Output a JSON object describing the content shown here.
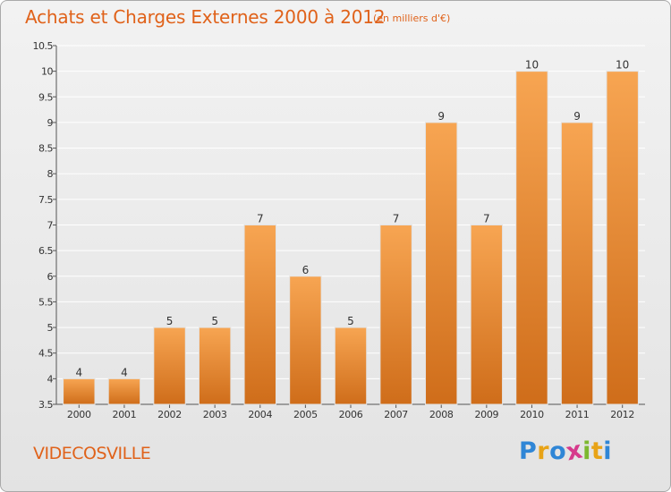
{
  "title": "Achats et Charges Externes 2000 à 2012",
  "unit_label": "(en milliers d'€)",
  "commune_name": "VIDECOSVILLE",
  "brand": {
    "letters": [
      "P",
      "r",
      "o",
      "x",
      "i",
      "t",
      "i"
    ],
    "colors": [
      "#2f86d6",
      "#e8a317",
      "#2f86d6",
      "#d63a8c",
      "#7cb82f",
      "#e8a317",
      "#2f86d6"
    ]
  },
  "colors": {
    "bar_top": "#f7a552",
    "bar_bottom": "#cf6d1a",
    "accent": "#e0621a",
    "grid": "#ffffff"
  },
  "chart_data": {
    "type": "bar",
    "title": "Achats et Charges Externes 2000 à 2012",
    "subtitle": "(en milliers d'€)",
    "categories": [
      "2000",
      "2001",
      "2002",
      "2003",
      "2004",
      "2005",
      "2006",
      "2007",
      "2008",
      "2009",
      "2010",
      "2011",
      "2012"
    ],
    "values": [
      4,
      4,
      5,
      5,
      7,
      6,
      5,
      7,
      9,
      7,
      10,
      9,
      10
    ],
    "data_labels": [
      "4",
      "4",
      "5",
      "5",
      "7",
      "6",
      "5",
      "7",
      "9",
      "7",
      "10",
      "9",
      "10"
    ],
    "ylim": [
      3.5,
      10.5
    ],
    "yticks": [
      3.5,
      4,
      4.5,
      5,
      5.5,
      6,
      6.5,
      7,
      7.5,
      8,
      8.5,
      9,
      9.5,
      10,
      10.5
    ],
    "ytick_labels": [
      "3.5",
      "4",
      "4.5",
      "5",
      "5.5",
      "6",
      "6.5",
      "7",
      "7.5",
      "8",
      "8.5",
      "9",
      "9.5",
      "10",
      "10.5"
    ],
    "grid": true,
    "xlabel": "",
    "ylabel": ""
  }
}
